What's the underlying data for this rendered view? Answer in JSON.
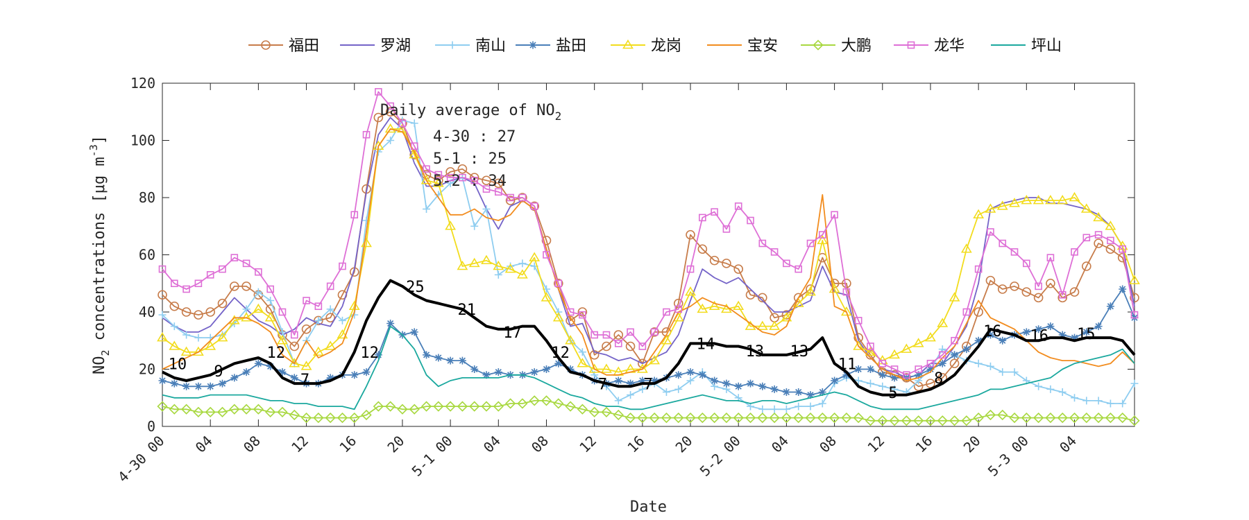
{
  "chart_data": {
    "type": "line",
    "xlabel": "Date",
    "ylabel": "NO2 concentrations [μg m-3]",
    "ylim": [
      0,
      120
    ],
    "yticks": [
      0,
      20,
      40,
      60,
      80,
      100,
      120
    ],
    "xlim": [
      0,
      71
    ],
    "xticks": [
      {
        "x": 0,
        "label": "4-30 00"
      },
      {
        "x": 4,
        "label": "04"
      },
      {
        "x": 8,
        "label": "08"
      },
      {
        "x": 12,
        "label": "12"
      },
      {
        "x": 16,
        "label": "16"
      },
      {
        "x": 20,
        "label": "20"
      },
      {
        "x": 24,
        "label": "5-1 00"
      },
      {
        "x": 28,
        "label": "04"
      },
      {
        "x": 32,
        "label": "08"
      },
      {
        "x": 36,
        "label": "12"
      },
      {
        "x": 40,
        "label": "16"
      },
      {
        "x": 44,
        "label": "20"
      },
      {
        "x": 48,
        "label": "5-2 00"
      },
      {
        "x": 52,
        "label": "04"
      },
      {
        "x": 56,
        "label": "08"
      },
      {
        "x": 60,
        "label": "12"
      },
      {
        "x": 64,
        "label": "16"
      },
      {
        "x": 68,
        "label": "20"
      },
      {
        "x": 72,
        "label": "5-3 00"
      },
      {
        "x": 76,
        "label": "04"
      }
    ],
    "grid": false,
    "legend_position": "top",
    "annotation": {
      "title": "Daily average of NO",
      "title_sub": "2",
      "lines": [
        "4-30 : 27",
        "5-1 : 25",
        "5-2 : 34"
      ]
    },
    "series": [
      {
        "name": "福田",
        "color": "#c77c4a",
        "marker": "circle",
        "marker_every": 1,
        "values": [
          46,
          42,
          40,
          39,
          40,
          43,
          49,
          49,
          46,
          41,
          32,
          28,
          34,
          37,
          38,
          46,
          54,
          83,
          108,
          110,
          106,
          95,
          88,
          86,
          89,
          90,
          87,
          86,
          85,
          79,
          80,
          77,
          65,
          50,
          37,
          40,
          25,
          28,
          32,
          28,
          22,
          33,
          33,
          43,
          67,
          62,
          58,
          57,
          55,
          46,
          45,
          38,
          39,
          45,
          48,
          59,
          50,
          50,
          31,
          25,
          19,
          18,
          17,
          14,
          15,
          17,
          22,
          28,
          40,
          51,
          48,
          49,
          47,
          45,
          50,
          45,
          47,
          56,
          64,
          62,
          59,
          45
        ]
      },
      {
        "name": "罗湖",
        "color": "#7463c8",
        "values": [
          38,
          35,
          33,
          33,
          35,
          40,
          45,
          41,
          37,
          35,
          32,
          34,
          38,
          36,
          35,
          42,
          55,
          82,
          102,
          108,
          104,
          92,
          84,
          84,
          86,
          87,
          85,
          76,
          69,
          77,
          79,
          76,
          62,
          48,
          35,
          36,
          26,
          25,
          23,
          24,
          22,
          24,
          26,
          32,
          44,
          55,
          52,
          50,
          52,
          48,
          44,
          40,
          40,
          42,
          44,
          56,
          47,
          46,
          30,
          24,
          20,
          19,
          17,
          18,
          22,
          22,
          28,
          35,
          50,
          76,
          78,
          79,
          80,
          80,
          78,
          78,
          77,
          76,
          74,
          70,
          63,
          42
        ]
      },
      {
        "name": "南山",
        "color": "#8ecdf0",
        "marker": "plus",
        "marker_every": 1,
        "values": [
          39,
          35,
          32,
          31,
          31,
          32,
          36,
          41,
          47,
          44,
          33,
          22,
          30,
          37,
          41,
          37,
          39,
          72,
          96,
          100,
          107,
          106,
          76,
          81,
          85,
          87,
          70,
          76,
          53,
          56,
          57,
          56,
          48,
          40,
          30,
          26,
          18,
          14,
          9,
          11,
          13,
          15,
          12,
          13,
          16,
          19,
          14,
          13,
          10,
          7,
          6,
          6,
          6,
          7,
          7,
          8,
          15,
          17,
          16,
          15,
          14,
          13,
          12,
          16,
          20,
          27,
          25,
          23,
          22,
          21,
          19,
          19,
          16,
          14,
          13,
          12,
          10,
          9,
          9,
          8,
          8,
          15
        ]
      },
      {
        "name": "盐田",
        "color": "#4a7fb8",
        "marker": "star",
        "marker_every": 1,
        "values": [
          16,
          15,
          14,
          14,
          14,
          15,
          17,
          19,
          22,
          21,
          19,
          17,
          15,
          15,
          17,
          18,
          18,
          19,
          25,
          36,
          32,
          33,
          25,
          24,
          23,
          23,
          20,
          18,
          19,
          18,
          18,
          19,
          20,
          22,
          20,
          18,
          16,
          15,
          16,
          15,
          16,
          16,
          17,
          18,
          19,
          18,
          16,
          15,
          14,
          15,
          14,
          13,
          12,
          12,
          11,
          12,
          16,
          18,
          20,
          20,
          18,
          17,
          17,
          18,
          20,
          22,
          25,
          27,
          30,
          32,
          30,
          32,
          33,
          34,
          35,
          32,
          31,
          33,
          35,
          42,
          48,
          38
        ]
      },
      {
        "name": "龙岗",
        "color": "#f2dc1d",
        "marker": "triangle",
        "marker_every": 1,
        "values": [
          31,
          28,
          26,
          26,
          28,
          31,
          37,
          38,
          41,
          38,
          30,
          22,
          21,
          26,
          28,
          32,
          42,
          64,
          98,
          104,
          104,
          95,
          86,
          85,
          70,
          56,
          57,
          58,
          56,
          55,
          53,
          59,
          45,
          38,
          30,
          22,
          20,
          20,
          19,
          20,
          20,
          23,
          30,
          38,
          47,
          41,
          42,
          41,
          42,
          35,
          35,
          35,
          38,
          43,
          47,
          65,
          48,
          40,
          28,
          26,
          23,
          25,
          27,
          29,
          31,
          36,
          45,
          62,
          74,
          76,
          77,
          78,
          79,
          79,
          79,
          79,
          80,
          76,
          73,
          70,
          63,
          51
        ]
      },
      {
        "name": "宝安",
        "color": "#f28c1e",
        "values": [
          20,
          22,
          24,
          26,
          30,
          34,
          38,
          38,
          36,
          33,
          25,
          22,
          30,
          24,
          26,
          29,
          40,
          68,
          98,
          104,
          103,
          96,
          86,
          80,
          74,
          74,
          76,
          73,
          72,
          74,
          79,
          76,
          62,
          48,
          38,
          32,
          20,
          18,
          18,
          19,
          20,
          26,
          32,
          40,
          42,
          45,
          43,
          42,
          39,
          36,
          33,
          32,
          35,
          45,
          52,
          81,
          42,
          40,
          28,
          24,
          20,
          18,
          16,
          17,
          19,
          24,
          28,
          36,
          44,
          38,
          36,
          34,
          30,
          26,
          24,
          23,
          23,
          22,
          21,
          22,
          26,
          22
        ]
      },
      {
        "name": "大鹏",
        "color": "#a8d840",
        "marker": "diamond",
        "marker_every": 1,
        "values": [
          7,
          6,
          6,
          5,
          5,
          5,
          6,
          6,
          6,
          5,
          5,
          4,
          3,
          3,
          3,
          3,
          3,
          4,
          7,
          7,
          6,
          6,
          7,
          7,
          7,
          7,
          7,
          7,
          7,
          8,
          8,
          9,
          9,
          8,
          7,
          6,
          5,
          5,
          4,
          3,
          3,
          3,
          3,
          3,
          3,
          3,
          3,
          3,
          3,
          3,
          3,
          3,
          3,
          3,
          3,
          3,
          3,
          3,
          3,
          2,
          2,
          2,
          2,
          2,
          2,
          2,
          2,
          2,
          3,
          4,
          4,
          3,
          3,
          3,
          3,
          3,
          3,
          3,
          3,
          3,
          3,
          2
        ]
      },
      {
        "name": "龙华",
        "color": "#de6fd6",
        "marker": "square",
        "marker_every": 1,
        "values": [
          55,
          50,
          48,
          50,
          53,
          55,
          59,
          57,
          54,
          48,
          40,
          32,
          44,
          42,
          49,
          56,
          74,
          102,
          117,
          112,
          106,
          98,
          90,
          88,
          87,
          87,
          86,
          83,
          82,
          80,
          80,
          77,
          60,
          50,
          40,
          39,
          32,
          32,
          29,
          33,
          28,
          33,
          40,
          41,
          55,
          73,
          75,
          69,
          77,
          72,
          64,
          61,
          57,
          55,
          64,
          67,
          74,
          47,
          37,
          28,
          22,
          20,
          18,
          20,
          22,
          25,
          30,
          40,
          55,
          68,
          64,
          61,
          57,
          49,
          59,
          46,
          61,
          66,
          67,
          65,
          62,
          39
        ]
      },
      {
        "name": "坪山",
        "color": "#1aa89e",
        "values": [
          11,
          10,
          10,
          10,
          11,
          11,
          11,
          11,
          10,
          9,
          9,
          8,
          8,
          7,
          7,
          7,
          6,
          14,
          23,
          35,
          32,
          27,
          18,
          14,
          16,
          17,
          17,
          17,
          17,
          18,
          18,
          17,
          15,
          13,
          11,
          10,
          8,
          7,
          7,
          6,
          6,
          7,
          8,
          9,
          10,
          11,
          10,
          9,
          9,
          8,
          9,
          9,
          8,
          9,
          10,
          11,
          12,
          11,
          9,
          7,
          6,
          6,
          6,
          6,
          7,
          8,
          9,
          10,
          11,
          13,
          13,
          14,
          15,
          16,
          17,
          20,
          22,
          23,
          24,
          25,
          27,
          22
        ]
      }
    ],
    "mean_series": {
      "color": "#000000",
      "values": [
        19,
        17,
        16,
        17,
        18,
        20,
        22,
        23,
        24,
        22,
        17,
        15,
        15,
        15,
        16,
        18,
        26,
        37,
        45,
        51,
        49,
        46,
        44,
        43,
        42,
        41,
        38,
        35,
        34,
        34,
        35,
        35,
        30,
        24,
        19,
        18,
        16,
        15,
        14,
        14,
        15,
        15,
        17,
        22,
        29,
        29,
        29,
        28,
        28,
        27,
        25,
        25,
        25,
        26,
        27,
        31,
        22,
        19,
        14,
        12,
        11,
        11,
        11,
        12,
        13,
        15,
        18,
        23,
        28,
        34,
        33,
        32,
        30,
        30,
        31,
        31,
        30,
        31,
        31,
        31,
        30,
        25
      ]
    },
    "value_labels": [
      {
        "x": 0.5,
        "y": 20,
        "text": "10"
      },
      {
        "x": 4.3,
        "y": 17.5,
        "text": "9"
      },
      {
        "x": 8.7,
        "y": 24,
        "text": "12"
      },
      {
        "x": 11.5,
        "y": 14.5,
        "text": "7"
      },
      {
        "x": 16.5,
        "y": 24,
        "text": "12"
      },
      {
        "x": 20.3,
        "y": 47,
        "text": "25"
      },
      {
        "x": 24.6,
        "y": 39,
        "text": "21"
      },
      {
        "x": 28.4,
        "y": 31,
        "text": "17"
      },
      {
        "x": 32.4,
        "y": 24,
        "text": "12"
      },
      {
        "x": 36.3,
        "y": 13,
        "text": "7"
      },
      {
        "x": 40.1,
        "y": 13,
        "text": "7"
      },
      {
        "x": 44.5,
        "y": 27,
        "text": "14"
      },
      {
        "x": 48.6,
        "y": 24.5,
        "text": "13"
      },
      {
        "x": 52.3,
        "y": 24.5,
        "text": "13"
      },
      {
        "x": 56.3,
        "y": 20,
        "text": "11"
      },
      {
        "x": 60.5,
        "y": 10,
        "text": "5"
      },
      {
        "x": 64.3,
        "y": 15,
        "text": "8"
      },
      {
        "x": 68.4,
        "y": 31.5,
        "text": "16"
      },
      {
        "x": 72.3,
        "y": 30,
        "text": "16"
      },
      {
        "x": 76.2,
        "y": 30.5,
        "text": "15"
      }
    ]
  }
}
